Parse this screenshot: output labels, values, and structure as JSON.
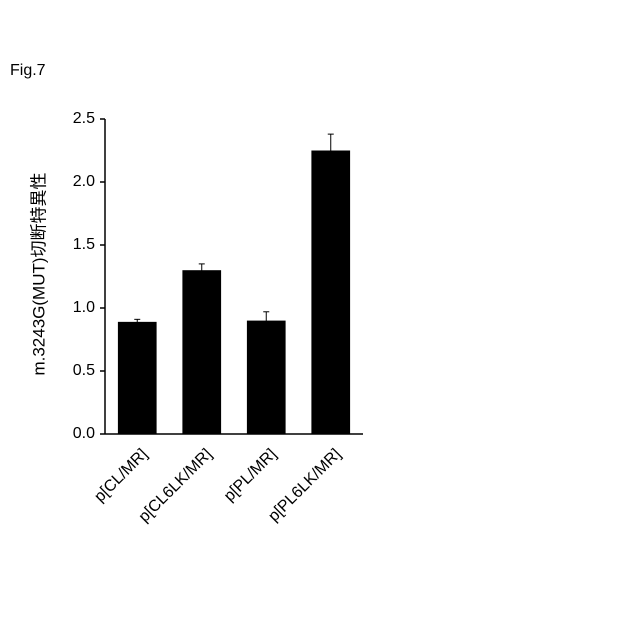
{
  "figure_label": "Fig.7",
  "chart_data": {
    "type": "bar",
    "y_label": "m.3243G(MUT)切断特異性",
    "categories": [
      "p[CL/MR]",
      "p[CL6LK/MR]",
      "p[PL/MR]",
      "p[PL6LK/MR]"
    ],
    "values": [
      0.89,
      1.3,
      0.9,
      2.25
    ],
    "errors": [
      0.02,
      0.05,
      0.07,
      0.13
    ],
    "color": "#000000",
    "ylim": [
      0,
      2.5
    ],
    "yticks": [
      {
        "value": 0,
        "label": "0.0"
      },
      {
        "value": 0.5,
        "label": "0.5"
      },
      {
        "value": 1,
        "label": "1.0"
      },
      {
        "value": 1.5,
        "label": "1.5"
      },
      {
        "value": 2,
        "label": "2.0"
      },
      {
        "value": 2.5,
        "label": "2.5"
      }
    ]
  }
}
